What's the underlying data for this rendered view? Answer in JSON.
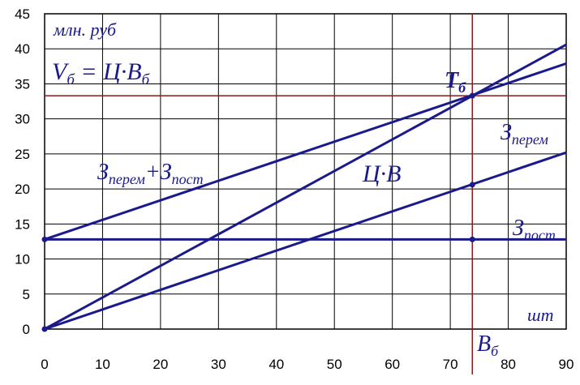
{
  "chart_data": {
    "type": "line",
    "xlabel": "шт",
    "ylabel": "млн. руб",
    "xlim": [
      0,
      90
    ],
    "ylim": [
      0,
      45
    ],
    "x_ticks": [
      0,
      10,
      20,
      30,
      40,
      50,
      60,
      70,
      80,
      90
    ],
    "y_ticks": [
      0,
      5,
      10,
      15,
      20,
      25,
      30,
      35,
      40,
      45
    ],
    "grid": true,
    "series": [
      {
        "name": "Ц·В",
        "x": [
          0,
          90
        ],
        "y": [
          0,
          40.6
        ]
      },
      {
        "name": "Зперем+Зпост",
        "x": [
          0,
          90
        ],
        "y": [
          12.8,
          37.9
        ]
      },
      {
        "name": "Зперем",
        "x": [
          0,
          90
        ],
        "y": [
          0,
          25.2
        ]
      },
      {
        "name": "Зпост",
        "x": [
          0,
          90
        ],
        "y": [
          12.8,
          12.8
        ]
      }
    ],
    "breakeven": {
      "label": "Тб",
      "x": 73.8,
      "y": 33.3,
      "x_label": "Вб"
    },
    "marker_points": [
      {
        "x": 0,
        "y": 0
      },
      {
        "x": 0,
        "y": 12.8
      },
      {
        "x": 73.8,
        "y": 20.6
      },
      {
        "x": 73.8,
        "y": 12.8
      },
      {
        "x": 73.8,
        "y": 33.3
      }
    ],
    "annotations": {
      "formula": {
        "left": "V",
        "left_sub": "б",
        "mid": " = Ц·В",
        "right_sub": "б"
      },
      "total_cost": {
        "p1": "З",
        "s1": "перем",
        "p2": "+З",
        "s2": "пост"
      },
      "revenue": "Ц·В",
      "variable_cost": {
        "main": "З",
        "sub": "перем"
      },
      "fixed_cost": {
        "main": "З",
        "sub": "пост"
      }
    },
    "colors": {
      "series": "#1a1a8c",
      "breakeven_lines": "#8b1a1a",
      "grid": "#000000"
    }
  }
}
